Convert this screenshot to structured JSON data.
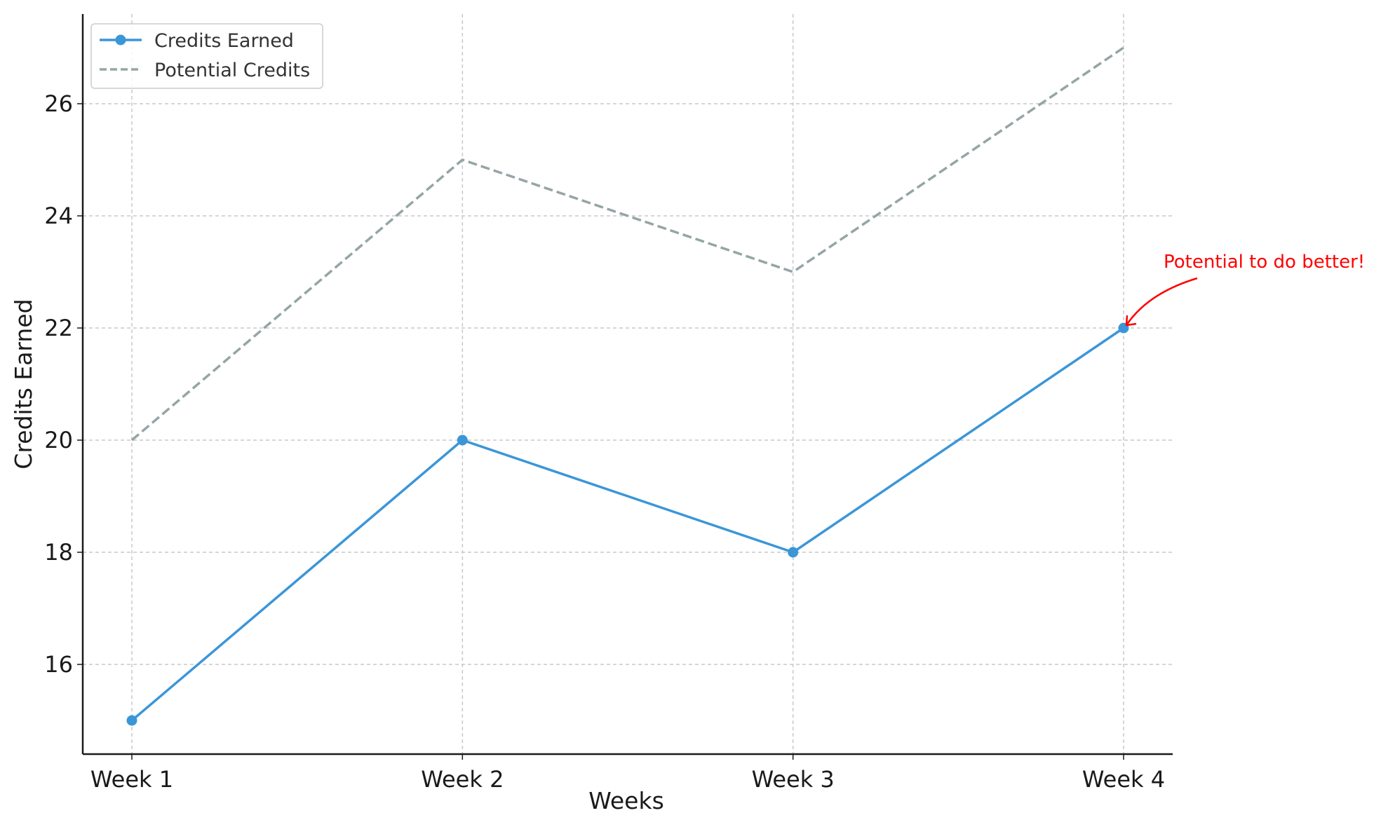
{
  "chart_data": {
    "type": "line",
    "title": "",
    "xlabel": "Weeks",
    "ylabel": "Credits Earned",
    "categories": [
      "Week 1",
      "Week 2",
      "Week 3",
      "Week 4"
    ],
    "ylim": [
      14.4,
      27.6
    ],
    "yticks": [
      16,
      18,
      20,
      22,
      24,
      26
    ],
    "grid": true,
    "legend_position": "top-left",
    "series": [
      {
        "name": "Credits Earned",
        "values": [
          15,
          20,
          18,
          22
        ],
        "color": "#3b96d8",
        "style": "solid",
        "marker": "circle"
      },
      {
        "name": "Potential Credits",
        "values": [
          20,
          25,
          23,
          27
        ],
        "color": "#95a5a6",
        "style": "dashed",
        "marker": "none"
      }
    ],
    "annotations": [
      {
        "text": "Potential to do better!",
        "x": "Week 4",
        "y": 22,
        "color": "#ff0000"
      }
    ]
  }
}
